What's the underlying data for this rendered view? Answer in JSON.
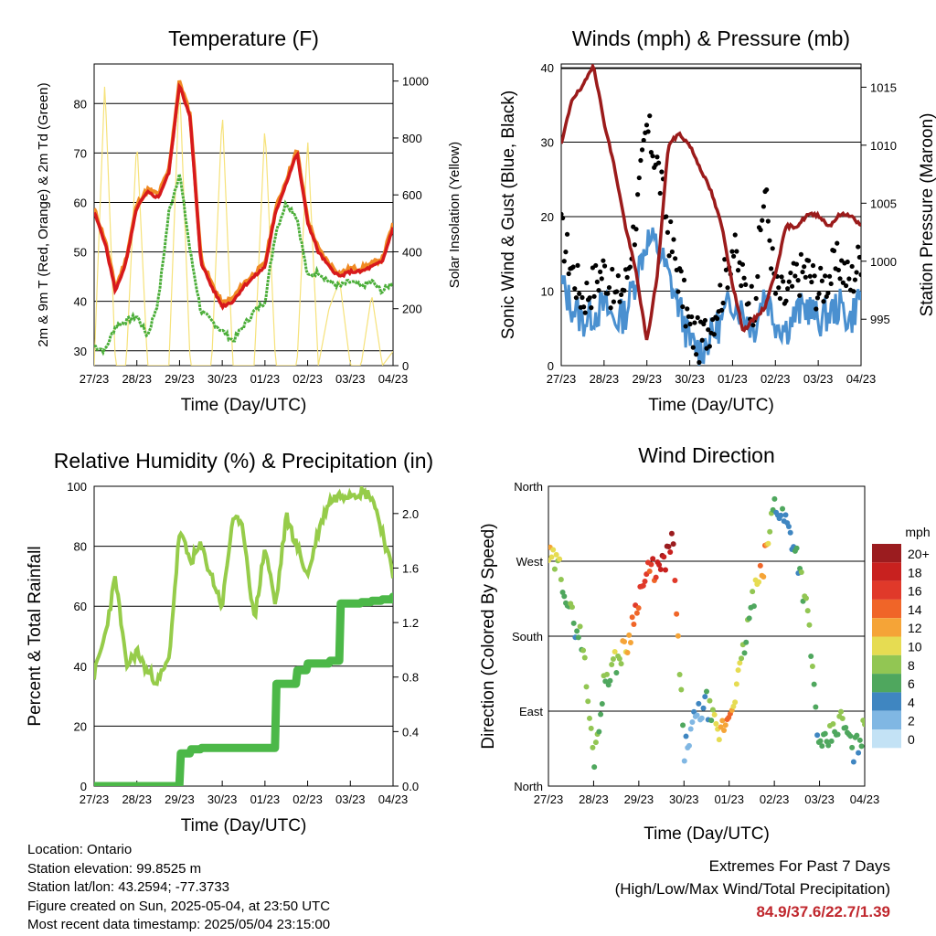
{
  "figure": {
    "x_ticks": [
      "27/23",
      "28/23",
      "29/23",
      "30/23",
      "01/23",
      "02/23",
      "03/23",
      "04/23"
    ]
  },
  "info": {
    "location": "Location: Ontario",
    "elevation": "Station elevation: 99.8525 m",
    "latlon": "Station lat/lon: 43.2594; -77.3733",
    "created": "Figure created on Sun, 2025-05-04, at 23:50 UTC",
    "recent": "Most recent data timestamp: 2025/05/04 23:15:00"
  },
  "extremes": {
    "title": "Extremes For Past 7 Days",
    "subtitle": "(High/Low/Max Wind/Total Precipitation)",
    "values": "84.9/37.6/22.7/1.39"
  },
  "colors": {
    "temp_2m": "#d7191c",
    "temp_9m": "#f08a24",
    "dewpoint": "#4cae3a",
    "solar": "#f6e27a",
    "wind": "#4a90d0",
    "gust": "#000000",
    "pressure": "#9b1b1b",
    "rh": "#96cc4a",
    "precip": "#4cb848"
  },
  "chart_data": [
    {
      "type": "line",
      "title": "Temperature (F)",
      "xlabel": "Time (Day/UTC)",
      "ylabel": "2m & 9m T (Red, Orange) & 2m Td (Green)",
      "y2label": "Solar Insolation (Yellow)",
      "ylim": [
        27,
        88
      ],
      "y2lim": [
        0,
        1060
      ],
      "yticks": [
        30,
        40,
        50,
        60,
        70,
        80
      ],
      "y2ticks": [
        0,
        200,
        400,
        600,
        800,
        1000
      ],
      "x": [
        0,
        0.25,
        0.5,
        0.75,
        1,
        1.25,
        1.5,
        1.75,
        2,
        2.25,
        2.5,
        2.75,
        3,
        3.25,
        3.5,
        3.75,
        4,
        4.25,
        4.5,
        4.75,
        5,
        5.25,
        5.5,
        5.75,
        6,
        6.25,
        6.5,
        6.75,
        7
      ],
      "series": [
        {
          "values": [
            58,
            52,
            42,
            48,
            59,
            62,
            61,
            66,
            84,
            77,
            48,
            43,
            39,
            40,
            43,
            45,
            47,
            58,
            64,
            70,
            56,
            50,
            47,
            45,
            46,
            46,
            47,
            48,
            55
          ]
        },
        {
          "values": [
            58,
            52,
            42,
            48,
            59,
            62,
            61,
            66,
            84,
            77,
            48,
            43,
            39,
            40,
            43,
            45,
            47,
            58,
            64,
            70,
            56,
            50,
            47,
            45,
            46,
            46,
            47,
            48,
            55
          ]
        },
        {
          "values": [
            31,
            30,
            35,
            36,
            37,
            33,
            40,
            58,
            66,
            50,
            38,
            36,
            34,
            32,
            35,
            38,
            40,
            54,
            60,
            57,
            45,
            46,
            44,
            43,
            44,
            43,
            44,
            42,
            44
          ]
        },
        {
          "values": [
            0,
            1000,
            0,
            0,
            800,
            0,
            0,
            0,
            1000,
            0,
            0,
            0,
            900,
            0,
            0,
            0,
            850,
            0,
            0,
            0,
            800,
            0,
            200,
            300,
            0,
            0,
            250,
            0,
            50
          ]
        }
      ]
    },
    {
      "type": "scatter",
      "title": "Winds (mph) & Pressure (mb)",
      "xlabel": "Time (Day/UTC)",
      "ylabel": "Sonic Wind & Gust (Blue, Black)",
      "y2label": "Station Pressure (Maroon)",
      "ylim": [
        0,
        40.5
      ],
      "y2lim": [
        991,
        1017
      ],
      "yticks": [
        0,
        10,
        20,
        30,
        40
      ],
      "y2ticks": [
        995,
        1000,
        1005,
        1010,
        1015
      ],
      "x": [
        0,
        0.25,
        0.5,
        0.75,
        1,
        1.25,
        1.5,
        1.75,
        2,
        2.25,
        2.5,
        2.75,
        3,
        3.25,
        3.5,
        3.75,
        4,
        4.25,
        4.5,
        4.75,
        5,
        5.25,
        5.5,
        5.75,
        6,
        6.25,
        6.5,
        6.75,
        7
      ],
      "series": [
        {
          "values": [
            11,
            8,
            6,
            7,
            8,
            6,
            7,
            12,
            17,
            16,
            12,
            8,
            3,
            2,
            4,
            6,
            9,
            7,
            5,
            10,
            6,
            5,
            7,
            8,
            6,
            7,
            8,
            6,
            10
          ]
        },
        {
          "values": [
            18,
            13,
            9,
            11,
            13,
            9,
            11,
            20,
            32,
            27,
            18,
            12,
            5,
            3,
            6,
            10,
            16,
            11,
            8,
            24,
            10,
            9,
            12,
            13,
            10,
            12,
            14,
            11,
            15
          ]
        },
        {
          "values": [
            1010,
            1014,
            1015,
            1017,
            1012,
            1008,
            1003,
            999,
            993,
            999,
            1010,
            1011,
            1010,
            1008,
            1006,
            1003,
            998,
            994,
            995,
            996,
            999,
            1003,
            1003,
            1004,
            1004,
            1003,
            1004,
            1004,
            1003
          ]
        }
      ]
    },
    {
      "type": "line",
      "title": "Relative Humidity (%) & Precipitation (in)",
      "xlabel": "Time (Day/UTC)",
      "ylabel": "Percent & Total Rainfall",
      "ylim": [
        0,
        100
      ],
      "y2lim": [
        0,
        2.2
      ],
      "yticks": [
        0,
        20,
        40,
        60,
        80,
        100
      ],
      "y2ticks": [
        0.0,
        0.4,
        0.8,
        1.2,
        1.6,
        2.0
      ],
      "x": [
        0,
        0.25,
        0.5,
        0.75,
        1,
        1.25,
        1.5,
        1.75,
        2,
        2.25,
        2.5,
        2.75,
        3,
        3.25,
        3.5,
        3.75,
        4,
        4.25,
        4.5,
        4.75,
        5,
        5.25,
        5.5,
        5.75,
        6,
        6.25,
        6.5,
        6.75,
        7
      ],
      "series": [
        {
          "values": [
            37,
            50,
            70,
            40,
            45,
            38,
            35,
            42,
            85,
            75,
            80,
            70,
            60,
            90,
            85,
            55,
            80,
            60,
            90,
            80,
            70,
            85,
            95,
            97,
            98,
            98,
            97,
            85,
            70
          ]
        },
        {
          "values": [
            0,
            0,
            0,
            0,
            0,
            0,
            0,
            0,
            0.24,
            0.27,
            0.28,
            0.28,
            0.28,
            0.28,
            0.28,
            0.28,
            0.28,
            0.75,
            0.75,
            0.85,
            0.9,
            0.9,
            0.92,
            1.34,
            1.34,
            1.35,
            1.36,
            1.37,
            1.39
          ]
        }
      ]
    },
    {
      "type": "scatter",
      "title": "Wind Direction",
      "xlabel": "Time (Day/UTC)",
      "ylabel": "Direction (Colored By Speed)",
      "ylim": [
        0,
        360
      ],
      "ytick_labels": [
        "North",
        "East",
        "South",
        "West",
        "North"
      ],
      "legend_title": "mph",
      "legend_labels": [
        "20+",
        "18",
        "16",
        "14",
        "12",
        "10",
        "8",
        "6",
        "4",
        "2",
        "0"
      ],
      "legend_colors": [
        "#9b1c1f",
        "#c8211f",
        "#e0392a",
        "#f06528",
        "#f5a437",
        "#e6dc52",
        "#92c653",
        "#4fa75e",
        "#3f86c1",
        "#80b7e3",
        "#c3e2f5"
      ],
      "x": [
        0,
        0.25,
        0.5,
        0.75,
        1,
        1.25,
        1.5,
        1.75,
        2,
        2.25,
        2.5,
        2.75,
        3,
        3.25,
        3.5,
        3.75,
        4,
        4.25,
        4.5,
        4.75,
        5,
        5.25,
        5.5,
        5.75,
        6,
        6.25,
        6.5,
        6.75,
        7
      ],
      "series": [
        {
          "values": [
            275,
            262,
            205,
            175,
            30,
            130,
            150,
            170,
            230,
            260,
            260,
            295,
            40,
            80,
            100,
            60,
            85,
            140,
            220,
            260,
            340,
            320,
            280,
            200,
            40,
            60,
            80,
            40,
            70
          ]
        },
        {
          "values": [
            10,
            8,
            6,
            7,
            8,
            7,
            8,
            12,
            16,
            15,
            18,
            19,
            3,
            2,
            4,
            10,
            14,
            8,
            6,
            14,
            5,
            4,
            6,
            8,
            5,
            6,
            7,
            5,
            7
          ]
        }
      ]
    }
  ]
}
